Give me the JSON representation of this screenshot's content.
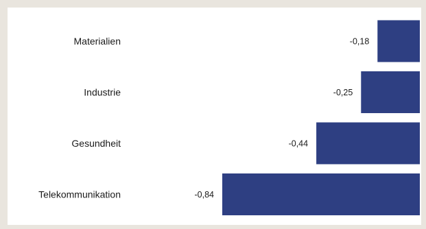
{
  "chart_data": {
    "type": "bar",
    "orientation": "horizontal",
    "categories": [
      "Materialien",
      "Industrie",
      "Gesundheit",
      "Telekommunikation"
    ],
    "values": [
      -0.18,
      -0.25,
      -0.44,
      -0.84
    ],
    "value_labels": [
      "-0,18",
      "-0,25",
      "-0,44",
      "-0,84"
    ],
    "title": "",
    "xlabel": "",
    "ylabel": "",
    "xlim": [
      -0.84,
      0
    ],
    "grid": false,
    "bar_color": "#2e3f82"
  }
}
